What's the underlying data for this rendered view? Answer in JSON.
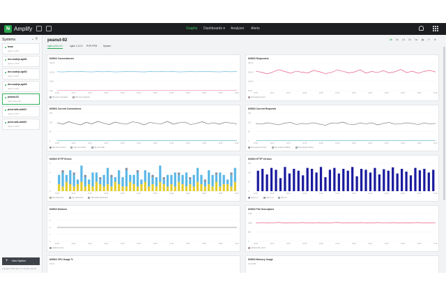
{
  "topbar": {
    "logo_letter": "N",
    "brand": "Amplify",
    "nav": [
      {
        "label": "Graphs",
        "active": true
      },
      {
        "label": "Dashboards ▾",
        "active": false
      },
      {
        "label": "Analyzer",
        "active": false
      },
      {
        "label": "Alerts",
        "active": false
      }
    ],
    "bell_icon": "bell-icon",
    "apps_icon": "grid-icon"
  },
  "sidebar": {
    "title": "Systems",
    "tools": "⌄ ⚲",
    "items": [
      {
        "name": "bean",
        "sub": "nginx 1.10.0",
        "selected": false
      },
      {
        "name": "dev-nodejs-api01",
        "sub": "nginx 1.10.0",
        "selected": false
      },
      {
        "name": "dev-nodejs-api02",
        "sub": "nginx 1.10.0",
        "selected": false
      },
      {
        "name": "dev-nodejs-api03",
        "sub": "nginx 1.10.0",
        "selected": false
      },
      {
        "name": "peanut-02",
        "sub": "nginx plus r10",
        "selected": true
      },
      {
        "name": "prod-rails-web01",
        "sub": "nginx 1.10.0",
        "selected": false
      },
      {
        "name": "prod-rails-web02",
        "sub": "nginx 1.10.0",
        "selected": false
      }
    ],
    "new_system": "New System",
    "copyright": "Copyright © 2016, Nginx, Inc. All rights reserved."
  },
  "main": {
    "host": "peanut-02",
    "tabs": [
      {
        "label": "nginx-plus-r10",
        "active": true
      },
      {
        "label": "nginx 1.12.0",
        "active": false
      },
      {
        "label": "PHP-FPM",
        "active": false
      },
      {
        "label": "System",
        "active": false
      }
    ],
    "time_ranges": [
      {
        "label": "1h",
        "active": true
      },
      {
        "label": "4h",
        "active": false
      },
      {
        "label": "1d",
        "active": false
      },
      {
        "label": "2d",
        "active": false
      },
      {
        "label": "1w",
        "active": false
      }
    ]
  },
  "panels": [
    {
      "title": "NGINX Connections/s",
      "type": "line",
      "y_ticks": [
        "150.00",
        "100.00",
        "50.00",
        "0.00"
      ],
      "ymax": 150,
      "series": [
        {
          "name": "http.conn.accepted",
          "color": "#5bb8e6",
          "values": [
            102,
            101,
            103,
            102,
            104,
            102,
            101,
            103,
            102,
            103,
            101,
            102,
            104,
            103,
            102,
            101,
            103,
            102,
            104,
            102,
            103,
            101,
            102,
            103,
            102,
            104,
            103,
            102,
            101,
            103,
            102,
            103
          ]
        },
        {
          "name": "http.conn.dropped",
          "color": "#f08aa0",
          "values": [
            1,
            1,
            1,
            1,
            1,
            1,
            1,
            1,
            1,
            1,
            1,
            1,
            1,
            1,
            1,
            1,
            1,
            1,
            1,
            1,
            1,
            1,
            1,
            1,
            1,
            1,
            1,
            1,
            1,
            1,
            1,
            1
          ]
        }
      ]
    },
    {
      "title": "NGINX Requests/s",
      "type": "line",
      "y_ticks": [
        "200.00",
        "150.00",
        "100.00",
        "50.00"
      ],
      "ymax": 200,
      "series": [
        {
          "name": "http.request.count",
          "color": "#e8446e",
          "values": [
            140,
            132,
            120,
            135,
            150,
            138,
            125,
            140,
            132,
            128,
            145,
            136,
            122,
            130,
            148,
            140,
            128,
            134,
            150,
            126,
            138,
            130,
            144,
            128,
            136,
            152,
            130,
            140,
            125,
            138,
            146,
            134
          ]
        }
      ]
    },
    {
      "title": "NGINX Current Connections",
      "type": "line",
      "y_ticks": [
        "150",
        "100",
        "50",
        "0"
      ],
      "ymax": 160,
      "series": [
        {
          "name": "http.conn.current",
          "color": "#555b63",
          "values": [
            104,
            96,
            110,
            100,
            92,
            106,
            98,
            112,
            102,
            94,
            108,
            100,
            96,
            110,
            104,
            92,
            106,
            100,
            98,
            112,
            96,
            104,
            108,
            94,
            100,
            110,
            98,
            104,
            96,
            108,
            102,
            98
          ]
        },
        {
          "name": "http.conn.active",
          "color": "#8fd18e",
          "values": [
            3,
            3,
            3,
            3,
            3,
            3,
            3,
            3,
            3,
            3,
            3,
            3,
            3,
            3,
            3,
            3,
            3,
            3,
            3,
            3,
            3,
            3,
            3,
            3,
            3,
            3,
            3,
            3,
            3,
            3,
            3,
            3
          ]
        },
        {
          "name": "http.conn.idle",
          "color": "#5bb8e6",
          "values": [
            2,
            2,
            2,
            2,
            2,
            2,
            2,
            2,
            2,
            2,
            2,
            2,
            2,
            2,
            2,
            2,
            2,
            2,
            2,
            2,
            2,
            2,
            2,
            2,
            2,
            2,
            2,
            2,
            2,
            2,
            2,
            2
          ]
        }
      ]
    },
    {
      "title": "NGINX Current Requests",
      "type": "line",
      "y_ticks": [
        "150",
        "100",
        "50",
        "0"
      ],
      "ymax": 160,
      "series": [
        {
          "name": "http.request.current",
          "color": "#555b63",
          "values": [
            100,
            96,
            104,
            98,
            92,
            102,
            106,
            94,
            100,
            98,
            104,
            96,
            90,
            102,
            100,
            108,
            96,
            94,
            102,
            98,
            104,
            92,
            100,
            106,
            96,
            98,
            104,
            100,
            94,
            102,
            98,
            100
          ]
        },
        {
          "name": "http.request.reading",
          "color": "#8fd18e",
          "values": [
            2,
            2,
            2,
            2,
            2,
            2,
            2,
            2,
            2,
            2,
            2,
            2,
            2,
            2,
            2,
            2,
            2,
            2,
            2,
            2,
            2,
            2,
            2,
            2,
            2,
            2,
            2,
            2,
            2,
            2,
            2,
            2
          ]
        },
        {
          "name": "http.request.writing",
          "color": "#5bb8e6",
          "values": [
            1,
            1,
            1,
            1,
            1,
            1,
            1,
            1,
            1,
            1,
            1,
            1,
            1,
            1,
            1,
            1,
            1,
            1,
            1,
            1,
            1,
            1,
            1,
            1,
            1,
            1,
            1,
            1,
            1,
            1,
            1,
            1
          ]
        }
      ]
    },
    {
      "title": "NGINX HTTP Errors",
      "type": "stackbar",
      "y_ticks": [
        "6",
        "4",
        "2",
        "0"
      ],
      "ymax": 6,
      "series": [
        {
          "name": "http.status.4xx",
          "color": "#e3cc2e",
          "values": [
            1.5,
            1,
            2,
            1.5,
            1,
            1.5,
            2,
            1,
            1.5,
            1,
            2,
            1.5,
            1,
            1.5,
            1,
            2,
            1.5,
            1,
            1,
            2,
            1.5,
            1,
            1.5,
            2,
            1,
            1.5,
            1,
            2,
            1.5,
            1,
            1.5,
            1,
            2,
            1.5,
            1,
            1.5,
            1,
            2,
            1.5,
            1,
            1.5,
            1,
            2,
            1,
            1.5,
            1.5,
            1,
            2
          ]
        },
        {
          "name": "http.status.5xx",
          "color": "#5bb8e6",
          "values": [
            2,
            3,
            1.5,
            3,
            2.5,
            1,
            3.5,
            2,
            1,
            3,
            2,
            1,
            2.5,
            3.5,
            2,
            1,
            3,
            2,
            3.5,
            1.5,
            2,
            3,
            1,
            2.5,
            3,
            1.5,
            2,
            3.5,
            1,
            2.5,
            2,
            3,
            1.5,
            2,
            3,
            1,
            2.5,
            3,
            2,
            1,
            3,
            2.5,
            1.5,
            3,
            2,
            1,
            2.5,
            3
          ]
        },
        {
          "name": "http.status.discarded",
          "color": "#8a90a0",
          "values": [
            0,
            0.5,
            0,
            0,
            0.5,
            0,
            0,
            0.5,
            0,
            0,
            0,
            0.5,
            0,
            0,
            0.5,
            0,
            0,
            0,
            0.5,
            0,
            0,
            0.5,
            0,
            0,
            0,
            0.5,
            0,
            0,
            0.5,
            0,
            0,
            0,
            0.5,
            0,
            0,
            0.5,
            0,
            0,
            0,
            0.5,
            0,
            0,
            0.5,
            0,
            0,
            0,
            0.5,
            0
          ]
        }
      ]
    },
    {
      "title": "NGINX HTTP Version",
      "type": "bar",
      "y_ticks": [
        "150",
        "100",
        "50",
        "0"
      ],
      "ymax": 150,
      "series": [
        {
          "name": "http.v1_1",
          "color": "#1a1a9e",
          "values": [
            110,
            120,
            90,
            125,
            115,
            70,
            130,
            95,
            120,
            110,
            85,
            125,
            120,
            100,
            130,
            75,
            115,
            125,
            95,
            120,
            110,
            130,
            80,
            120,
            115,
            100,
            125,
            90,
            118,
            110,
            128,
            95,
            120,
            105,
            85,
            125,
            112,
            120,
            100,
            115
          ]
        },
        {
          "name": "http.v1_0",
          "color": "#8a90a0",
          "values": []
        },
        {
          "name": "http.v2",
          "color": "#5bb8e6",
          "values": []
        }
      ]
    },
    {
      "title": "NGINX Workers",
      "type": "line",
      "y_ticks": [
        "4",
        "3",
        "2",
        "1",
        "0"
      ],
      "ymax": 4,
      "series": [
        {
          "name": "workers.count",
          "color": "#555b63",
          "values": [
            2,
            2,
            2,
            2,
            2,
            2,
            2,
            2,
            2,
            2,
            2,
            2,
            2,
            2,
            2,
            2,
            2,
            2,
            2,
            2,
            2,
            2,
            2,
            2,
            2,
            2,
            2,
            2,
            2,
            2,
            2,
            2
          ]
        }
      ]
    },
    {
      "title": "NGINX File Descriptors",
      "type": "line",
      "y_ticks": [
        "1500",
        "1000",
        "500",
        "0"
      ],
      "ymax": 1500,
      "series": [
        {
          "name": "workers.fds_count",
          "color": "#e8446e",
          "values": [
            980,
            1010,
            990,
            1000,
            1020,
            985,
            1005,
            995,
            1015,
            990,
            1000,
            1010,
            985,
            1000,
            1020,
            995,
            1005,
            990,
            1010,
            1000,
            985,
            1015,
            1000,
            995,
            1010,
            990,
            1005,
            1000,
            1015,
            990,
            1000,
            1005
          ]
        }
      ]
    },
    {
      "title": "NGINX CPU Usage %",
      "type": "line",
      "y_ticks": [
        "100.00"
      ],
      "ymax": 100,
      "series": []
    },
    {
      "title": "NGINX Memory Usage",
      "type": "line",
      "y_ticks": [
        "19.07 MiB"
      ],
      "ymax": 100,
      "series": []
    }
  ],
  "x_ticks": [
    "10:05",
    "10:10",
    "10:15",
    "10:20",
    "10:25",
    "10:30",
    "10:35",
    "10:40",
    "10:45",
    "10:50",
    "10:55",
    "11:00"
  ]
}
